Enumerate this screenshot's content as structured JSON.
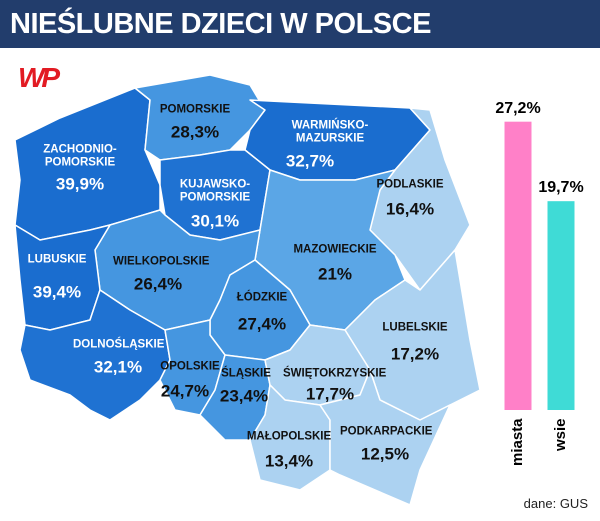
{
  "title": "NIEŚLUBNE DZIECI W POLSCE",
  "logo": "WP",
  "source": "dane: GUS",
  "chart_data": [
    {
      "type": "map",
      "categories": [
        "ZACHODNIO-POMORSKIE",
        "POMORSKIE",
        "WARMIŃSKO-MAZURSKIE",
        "PODLASKIE",
        "KUJAWSKO-POMORSKIE",
        "MAZOWIECKIE",
        "WIELKOPOLSKIE",
        "LUBUSKIE",
        "ŁÓDZKIE",
        "LUBELSKIE",
        "DOLNOŚLĄSKIE",
        "OPOLSKIE",
        "ŚLĄSKIE",
        "ŚWIĘTOKRZYSKIE",
        "MAŁOPOLSKIE",
        "PODKARPACKIE"
      ],
      "values": [
        39.9,
        28.3,
        32.7,
        16.4,
        30.1,
        21,
        26.4,
        39.4,
        27.4,
        17.2,
        32.1,
        24.7,
        23.4,
        17.7,
        13.4,
        12.5
      ],
      "value_labels": [
        "39,9%",
        "28,3%",
        "32,7%",
        "16,4%",
        "30,1%",
        "21%",
        "26,4%",
        "39,4%",
        "27,4%",
        "17,2%",
        "32,1%",
        "24,7%",
        "23,4%",
        "17,7%",
        "13,4%",
        "12,5%"
      ],
      "colors": [
        "#1a6dcf",
        "#4596e0",
        "#1a6dcf",
        "#acd2f1",
        "#1f72d2",
        "#5ba6e6",
        "#4596e0",
        "#1a6dcf",
        "#4596e0",
        "#acd2f1",
        "#1f72d2",
        "#4596e0",
        "#4596e0",
        "#acd2f1",
        "#acd2f1",
        "#acd2f1"
      ]
    },
    {
      "type": "bar",
      "categories": [
        "miasta",
        "wsie"
      ],
      "values": [
        27.2,
        19.7
      ],
      "value_labels": [
        "27,2%",
        "19,7%"
      ],
      "colors": [
        "#ff80c8",
        "#3fdbd6"
      ]
    }
  ]
}
